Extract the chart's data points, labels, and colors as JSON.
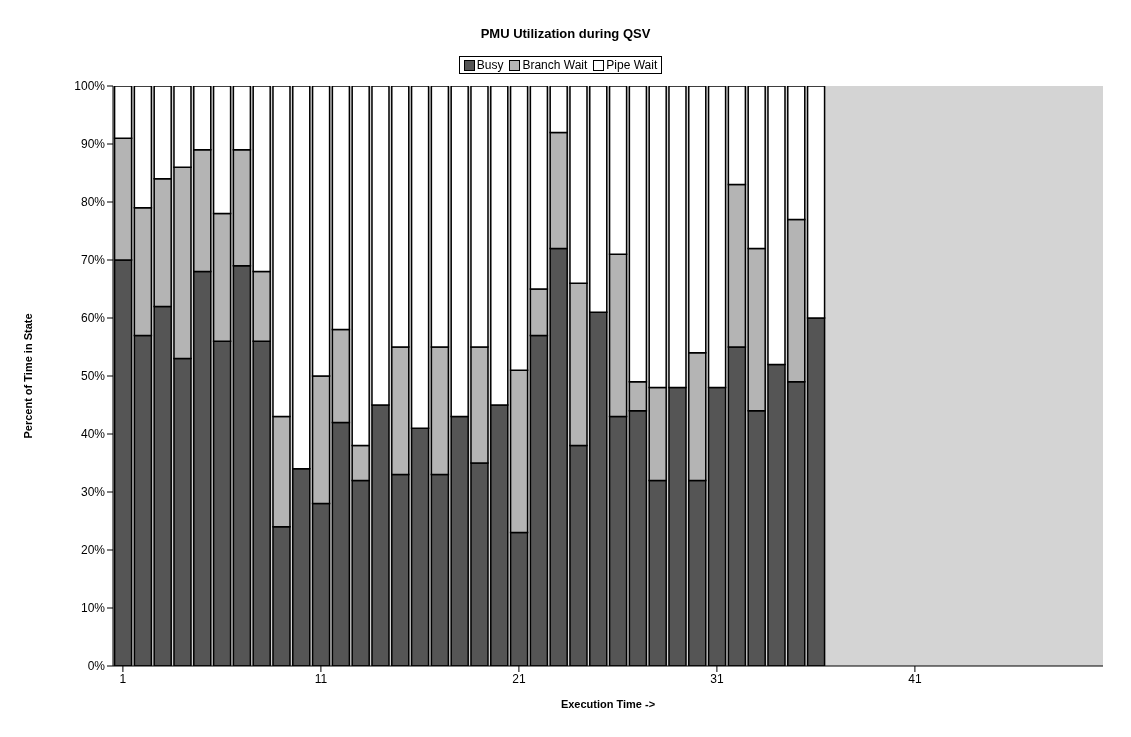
{
  "chart_data": {
    "type": "bar",
    "stacked": true,
    "title": "PMU Utilization during QSV",
    "xlabel": "Execution Time ->",
    "ylabel": "Percent of Time in State",
    "categories": [
      "1",
      null,
      null,
      null,
      null,
      null,
      null,
      null,
      null,
      null,
      "11",
      null,
      null,
      null,
      null,
      null,
      null,
      null,
      null,
      null,
      "21",
      null,
      null,
      null,
      null,
      null,
      null,
      null,
      null,
      null,
      "31",
      null,
      null,
      null,
      null,
      null,
      null,
      null,
      null,
      null,
      "41",
      null,
      null,
      null,
      null,
      null,
      null,
      null,
      null,
      null
    ],
    "series": [
      {
        "name": "Busy",
        "color": "#555555",
        "values": [
          70,
          57,
          62,
          53,
          68,
          56,
          69,
          56,
          24,
          34,
          28,
          42,
          32,
          45,
          33,
          41,
          33,
          43,
          35,
          45,
          23,
          57,
          72,
          38,
          61,
          43,
          44,
          32,
          48,
          32,
          48,
          55,
          44,
          52,
          49,
          60,
          null,
          null,
          null,
          null,
          null,
          null,
          null,
          null,
          null,
          null,
          null,
          null,
          null,
          null
        ]
      },
      {
        "name": "Branch Wait",
        "color": "#b4b4b4",
        "values": [
          21,
          22,
          22,
          33,
          21,
          22,
          20,
          12,
          19,
          0,
          22,
          16,
          6,
          0,
          22,
          0,
          22,
          0,
          20,
          0,
          28,
          8,
          20,
          28,
          0,
          28,
          5,
          16,
          0,
          22,
          0,
          28,
          28,
          0,
          28,
          0,
          null,
          null,
          null,
          null,
          null,
          null,
          null,
          null,
          null,
          null,
          null,
          null,
          null,
          null
        ]
      },
      {
        "name": "Pipe Wait",
        "color": "#ffffff",
        "values": [
          9,
          21,
          16,
          14,
          11,
          22,
          11,
          32,
          57,
          66,
          50,
          42,
          62,
          55,
          45,
          59,
          45,
          57,
          45,
          55,
          49,
          35,
          8,
          34,
          39,
          29,
          51,
          52,
          52,
          46,
          52,
          17,
          28,
          48,
          23,
          40,
          null,
          null,
          null,
          null,
          null,
          null,
          null,
          null,
          null,
          null,
          null,
          null,
          null,
          null
        ]
      }
    ],
    "ylim": [
      0,
      100
    ],
    "yticks": [
      {
        "value": 0,
        "label": "0%"
      },
      {
        "value": 10,
        "label": "10%"
      },
      {
        "value": 20,
        "label": "20%"
      },
      {
        "value": 30,
        "label": "30%"
      },
      {
        "value": 40,
        "label": "40%"
      },
      {
        "value": 50,
        "label": "50%"
      },
      {
        "value": 60,
        "label": "60%"
      },
      {
        "value": 70,
        "label": "70%"
      },
      {
        "value": 80,
        "label": "80%"
      },
      {
        "value": 90,
        "label": "90%"
      },
      {
        "value": 100,
        "label": "100%"
      }
    ],
    "legend": "top"
  }
}
